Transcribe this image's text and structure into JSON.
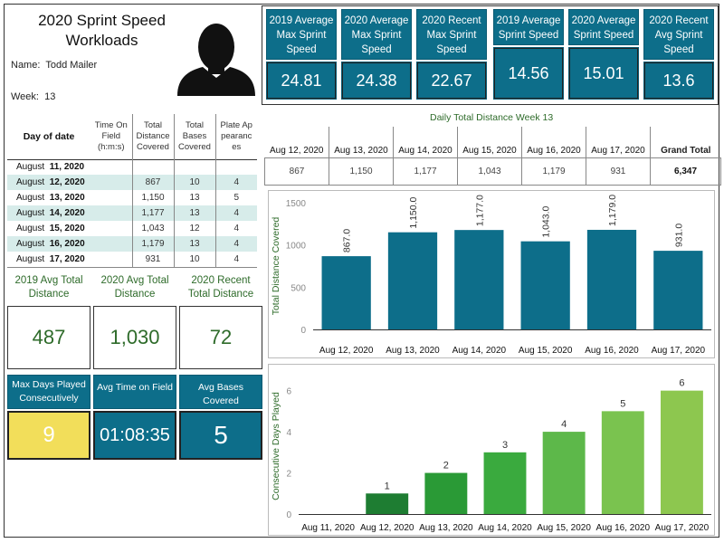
{
  "header": {
    "title_line1": "2020 Sprint Speed",
    "title_line2": "Workloads",
    "name_label": "Name:",
    "name_value": "Todd Mailer",
    "week_label": "Week:",
    "week_value": "13"
  },
  "top_kpis": [
    {
      "label": "2019 Average Max Sprint Speed",
      "value": "24.81"
    },
    {
      "label": "2020 Average Max Sprint Speed",
      "value": "24.38"
    },
    {
      "label": "2020 Recent Max Sprint Speed",
      "value": "22.67"
    },
    {
      "label": "2019 Average Sprint Speed",
      "value": "14.56"
    },
    {
      "label": "2020 Average Sprint Speed",
      "value": "15.01"
    },
    {
      "label": "2020 Recent Avg Sprint Speed",
      "value": "13.6"
    }
  ],
  "table": {
    "headers": [
      "Day of date",
      "Time On Field (h:m:s)",
      "Total Distance Covered",
      "Total Bases Covered",
      "Plate Ap pearanc es"
    ],
    "rows": [
      {
        "month": "August",
        "day": "11, 2020",
        "time": "",
        "distance": "",
        "bases": "",
        "pa": ""
      },
      {
        "month": "August",
        "day": "12, 2020",
        "time": "",
        "distance": "867",
        "bases": "10",
        "pa": "4"
      },
      {
        "month": "August",
        "day": "13, 2020",
        "time": "",
        "distance": "1,150",
        "bases": "13",
        "pa": "5"
      },
      {
        "month": "August",
        "day": "14, 2020",
        "time": "",
        "distance": "1,177",
        "bases": "13",
        "pa": "4"
      },
      {
        "month": "August",
        "day": "15, 2020",
        "time": "",
        "distance": "1,043",
        "bases": "12",
        "pa": "4"
      },
      {
        "month": "August",
        "day": "16, 2020",
        "time": "",
        "distance": "1,179",
        "bases": "13",
        "pa": "4"
      },
      {
        "month": "August",
        "day": "17, 2020",
        "time": "",
        "distance": "931",
        "bases": "10",
        "pa": "4"
      }
    ]
  },
  "mid_kpis": [
    {
      "label": "2019 Avg Total Distance",
      "value": "487"
    },
    {
      "label": "2020 Avg Total Distance",
      "value": "1,030"
    },
    {
      "label": "2020 Recent Total Distance",
      "value": "72"
    }
  ],
  "bottom_kpis": [
    {
      "label": "Max Days Played Consecutively",
      "value": "9"
    },
    {
      "label": "Avg Time on Field",
      "value": "01:08:35"
    },
    {
      "label": "Avg Bases Covered",
      "value": "5"
    }
  ],
  "distance_table": {
    "title": "Daily Total Distance Week 13",
    "headers": [
      "Aug 12, 2020",
      "Aug 13, 2020",
      "Aug 14, 2020",
      "Aug 15, 2020",
      "Aug 16, 2020",
      "Aug 17, 2020",
      "Grand Total"
    ],
    "values": [
      "867",
      "1,150",
      "1,177",
      "1,043",
      "1,179",
      "931",
      "6,347"
    ]
  },
  "colors": {
    "teal": "#0d6e8a",
    "yellow": "#f2de5a",
    "green_text": "#2e6b2a"
  },
  "chart_data": [
    {
      "type": "bar",
      "title": "",
      "ylabel": "Total Distance Covered",
      "categories": [
        "Aug 12, 2020",
        "Aug 13, 2020",
        "Aug 14, 2020",
        "Aug 15, 2020",
        "Aug 16, 2020",
        "Aug 17, 2020"
      ],
      "values": [
        867.0,
        1150.0,
        1177.0,
        1043.0,
        1179.0,
        931.0
      ],
      "data_labels": [
        "867.0",
        "1,150.0",
        "1,177.0",
        "1,043.0",
        "1,179.0",
        "931.0"
      ],
      "yticks": [
        "0",
        "500",
        "1000",
        "1500"
      ],
      "ylim": [
        0,
        1500
      ],
      "color": "#0d6e8a"
    },
    {
      "type": "bar",
      "title": "",
      "ylabel": "Consecutive Days Played",
      "categories": [
        "Aug 11, 2020",
        "Aug 12, 2020",
        "Aug 13, 2020",
        "Aug 14, 2020",
        "Aug 15, 2020",
        "Aug 16, 2020",
        "Aug 17, 2020"
      ],
      "values": [
        0,
        1,
        2,
        3,
        4,
        5,
        6
      ],
      "data_labels": [
        "",
        "1",
        "2",
        "3",
        "4",
        "5",
        "6"
      ],
      "yticks": [
        "0",
        "2",
        "4",
        "6"
      ],
      "ylim": [
        0,
        6.6
      ],
      "colors": [
        "#1e7d32",
        "#1e7d32",
        "#2a9a36",
        "#3aaa3e",
        "#5db84a",
        "#7ac34f",
        "#8dc74f"
      ]
    }
  ]
}
